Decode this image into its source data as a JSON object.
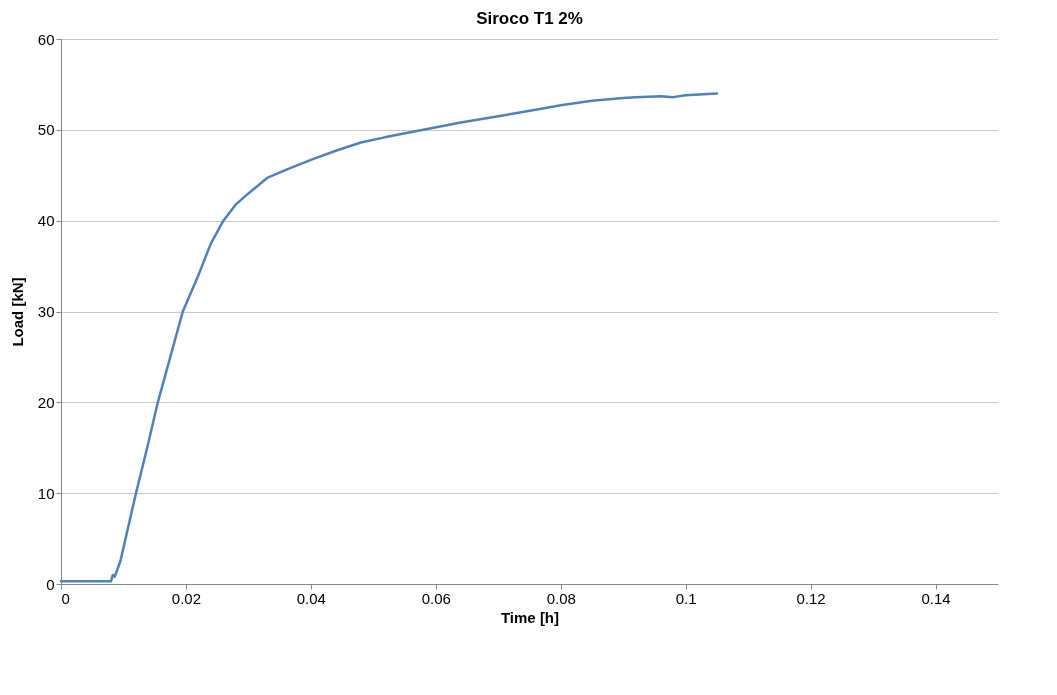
{
  "chart_data": {
    "type": "line",
    "title": "Siroco T1 2%",
    "xlabel": "Time [h]",
    "ylabel": "Load [kN]",
    "xlim": [
      0,
      0.15
    ],
    "xticks": [
      0,
      0.02,
      0.04,
      0.06,
      0.08,
      0.1,
      0.12,
      0.14
    ],
    "ylim": [
      0,
      60
    ],
    "yticks": [
      0,
      10,
      20,
      30,
      40,
      50,
      60
    ],
    "grid": "y",
    "legend": false,
    "marker": "none",
    "line_style": "solid",
    "series": [
      {
        "color": "#4f81bd",
        "x": [
          0,
          0.004,
          0.008,
          0.0083,
          0.0086,
          0.0095,
          0.011,
          0.012,
          0.0138,
          0.0155,
          0.0175,
          0.0195,
          0.022,
          0.024,
          0.026,
          0.028,
          0.03,
          0.033,
          0.036,
          0.04,
          0.044,
          0.048,
          0.052,
          0.058,
          0.064,
          0.07,
          0.076,
          0.08,
          0.085,
          0.09,
          0.092,
          0.096,
          0.098,
          0.1,
          0.105
        ],
        "values": [
          0.3,
          0.3,
          0.3,
          1,
          0.8,
          2.5,
          7,
          10,
          15,
          20,
          25,
          30,
          34,
          37.5,
          40,
          41.8,
          43,
          44.7,
          45.6,
          46.7,
          47.7,
          48.6,
          49.2,
          50,
          50.8,
          51.5,
          52.2,
          52.7,
          53.2,
          53.5,
          53.6,
          53.7,
          53.6,
          53.8,
          54
        ]
      }
    ]
  }
}
